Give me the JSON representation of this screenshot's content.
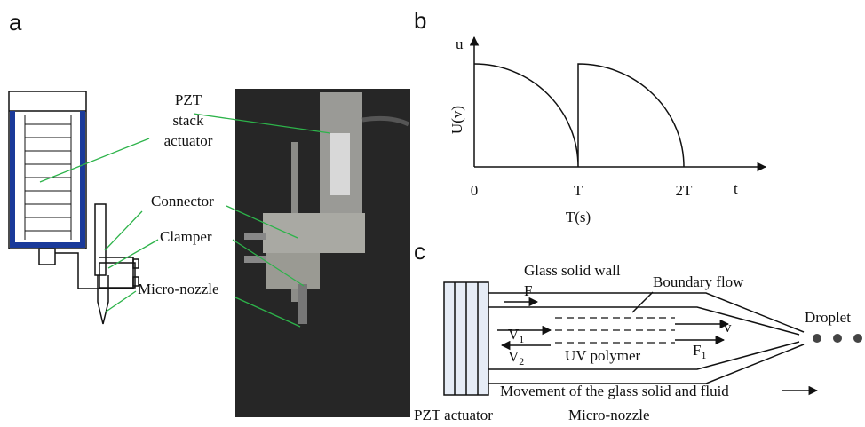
{
  "panel_a": {
    "label": "a",
    "callouts": {
      "pzt": [
        "PZT",
        "stack",
        "actuator"
      ],
      "connector": "Connector",
      "clamper": "Clamper",
      "nozzle": "Micro-nozzle"
    }
  },
  "panel_b": {
    "label": "b",
    "y_axis": {
      "symbol": "u",
      "title": "U(v)"
    },
    "x_axis": {
      "symbol": "t",
      "title": "T(s)",
      "ticks": [
        "0",
        "T",
        "2T"
      ]
    }
  },
  "panel_c": {
    "label": "c",
    "wall": "Glass solid wall",
    "boundary": "Boundary flow",
    "force": "F",
    "v1": {
      "base": "V",
      "sub": "1"
    },
    "v2": {
      "base": "V",
      "sub": "2"
    },
    "v": "v",
    "f1": {
      "base": "F",
      "sub": "1"
    },
    "polymer": "UV polymer",
    "droplet": "Droplet",
    "movement": "Movement of the glass solid and fluid",
    "actuator": "PZT actuator",
    "nozzle": "Micro-nozzle"
  }
}
